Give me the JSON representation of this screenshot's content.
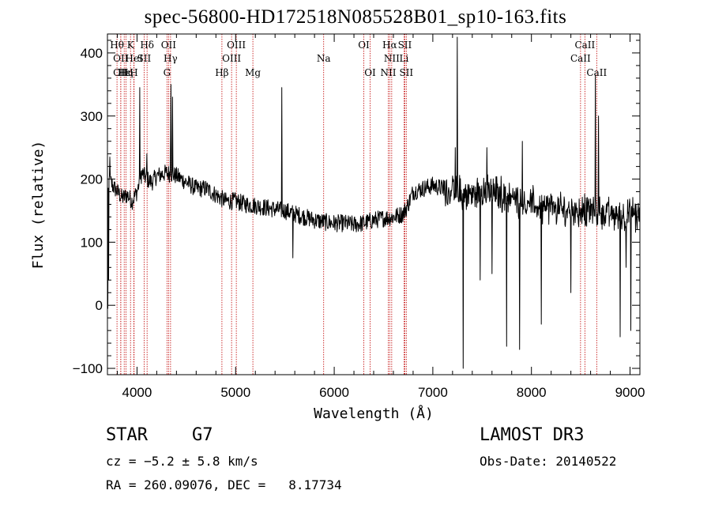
{
  "chart_data": {
    "type": "line",
    "title": "spec-56800-HD172518N085528B01_sp10-163.fits",
    "xlabel": "Wavelength (Å)",
    "ylabel": "Flux (relative)",
    "xlim": [
      3700,
      9100
    ],
    "ylim": [
      -110,
      430
    ],
    "xticks": [
      4000,
      5000,
      6000,
      7000,
      8000,
      9000
    ],
    "yticks": [
      -100,
      0,
      100,
      200,
      300,
      400
    ],
    "grid": false,
    "series": [
      {
        "name": "flux",
        "anchors_x": [
          3700,
          3720,
          3750,
          3800,
          3850,
          3900,
          3950,
          4000,
          4050,
          4100,
          4150,
          4200,
          4300,
          4400,
          4500,
          4600,
          4700,
          4800,
          4900,
          5000,
          5100,
          5200,
          5300,
          5400,
          5500,
          5600,
          5700,
          5800,
          5900,
          6000,
          6100,
          6200,
          6300,
          6400,
          6500,
          6600,
          6700,
          6750,
          6800,
          6900,
          7000,
          7100,
          7200,
          7300,
          7400,
          7500,
          7600,
          7700,
          7800,
          7900,
          8000,
          8100,
          8200,
          8300,
          8400,
          8500,
          8600,
          8700,
          8800,
          8900,
          9000,
          9100
        ],
        "anchors_y": [
          170,
          200,
          190,
          180,
          170,
          175,
          165,
          180,
          210,
          200,
          195,
          205,
          210,
          205,
          195,
          185,
          185,
          175,
          165,
          165,
          160,
          158,
          155,
          152,
          150,
          145,
          140,
          135,
          132,
          130,
          130,
          128,
          130,
          135,
          138,
          140,
          145,
          160,
          180,
          185,
          190,
          185,
          180,
          175,
          175,
          180,
          180,
          175,
          170,
          165,
          160,
          155,
          155,
          150,
          150,
          150,
          150,
          148,
          145,
          140,
          145,
          140
        ],
        "noise_amplitude": 14,
        "spikes": [
          {
            "x": 3705,
            "y": -5
          },
          {
            "x": 3712,
            "y": 40
          },
          {
            "x": 3725,
            "y": 235
          },
          {
            "x": 4030,
            "y": 345
          },
          {
            "x": 4100,
            "y": 240
          },
          {
            "x": 4340,
            "y": 265
          },
          {
            "x": 4345,
            "y": 350
          },
          {
            "x": 4360,
            "y": 330
          },
          {
            "x": 5470,
            "y": 345
          },
          {
            "x": 5580,
            "y": 75
          },
          {
            "x": 7250,
            "y": 425
          },
          {
            "x": 7310,
            "y": -100
          },
          {
            "x": 7230,
            "y": 250
          },
          {
            "x": 7480,
            "y": 40
          },
          {
            "x": 7550,
            "y": 250
          },
          {
            "x": 7600,
            "y": 50
          },
          {
            "x": 7750,
            "y": -65
          },
          {
            "x": 7880,
            "y": -70
          },
          {
            "x": 7910,
            "y": 260
          },
          {
            "x": 8100,
            "y": -30
          },
          {
            "x": 8400,
            "y": 20
          },
          {
            "x": 8650,
            "y": 365
          },
          {
            "x": 8680,
            "y": 300
          },
          {
            "x": 8900,
            "y": -50
          },
          {
            "x": 8960,
            "y": 60
          },
          {
            "x": 9010,
            "y": -40
          }
        ]
      }
    ],
    "spectral_lines": [
      {
        "x": 3797,
        "label": "Hθ",
        "row": 0
      },
      {
        "x": 3835,
        "label": "OII",
        "row": 1
      },
      {
        "x": 3835,
        "label": "OII",
        "row": 2
      },
      {
        "x": 3870,
        "label": "Hε",
        "row": 2
      },
      {
        "x": 3889,
        "label": "Hη",
        "row": 2
      },
      {
        "x": 3934,
        "label": "K",
        "row": 0
      },
      {
        "x": 3968,
        "label": "H",
        "row": 2
      },
      {
        "x": 3970,
        "label": "HeI",
        "row": 1
      },
      {
        "x": 4072,
        "label": "SII",
        "row": 1
      },
      {
        "x": 4102,
        "label": "Hδ",
        "row": 0
      },
      {
        "x": 4304,
        "label": "G",
        "row": 2
      },
      {
        "x": 4320,
        "label": "OII",
        "row": 0
      },
      {
        "x": 4340,
        "label": "Hγ",
        "row": 1
      },
      {
        "x": 4861,
        "label": "Hβ",
        "row": 2
      },
      {
        "x": 4959,
        "label": "OIII",
        "row": 1
      },
      {
        "x": 5007,
        "label": "OIII",
        "row": 0
      },
      {
        "x": 5175,
        "label": "Mg",
        "row": 2
      },
      {
        "x": 5893,
        "label": "Na",
        "row": 1
      },
      {
        "x": 6300,
        "label": "OI",
        "row": 0
      },
      {
        "x": 6364,
        "label": "OI",
        "row": 2
      },
      {
        "x": 6548,
        "label": "NII",
        "row": 2
      },
      {
        "x": 6563,
        "label": "Hα",
        "row": 0
      },
      {
        "x": 6583,
        "label": "NII",
        "row": 1
      },
      {
        "x": 6708,
        "label": "Li",
        "row": 1
      },
      {
        "x": 6716,
        "label": "SII",
        "row": 0
      },
      {
        "x": 6731,
        "label": "SII",
        "row": 2
      },
      {
        "x": 8498,
        "label": "CaII",
        "row": 1
      },
      {
        "x": 8542,
        "label": "CaII",
        "row": 0
      },
      {
        "x": 8662,
        "label": "CaII",
        "row": 2
      }
    ]
  },
  "info": {
    "object_class": "STAR",
    "subclass": "G7",
    "survey": "LAMOST DR3",
    "cz": "cz = −5.2 ± 5.8 km/s",
    "obs_date": "Obs-Date: 20140522",
    "radec": "RA = 260.09076, DEC =   8.17734"
  },
  "colors": {
    "line_markers": "#c00000",
    "spectrum": "#000000",
    "axes": "#000000"
  }
}
